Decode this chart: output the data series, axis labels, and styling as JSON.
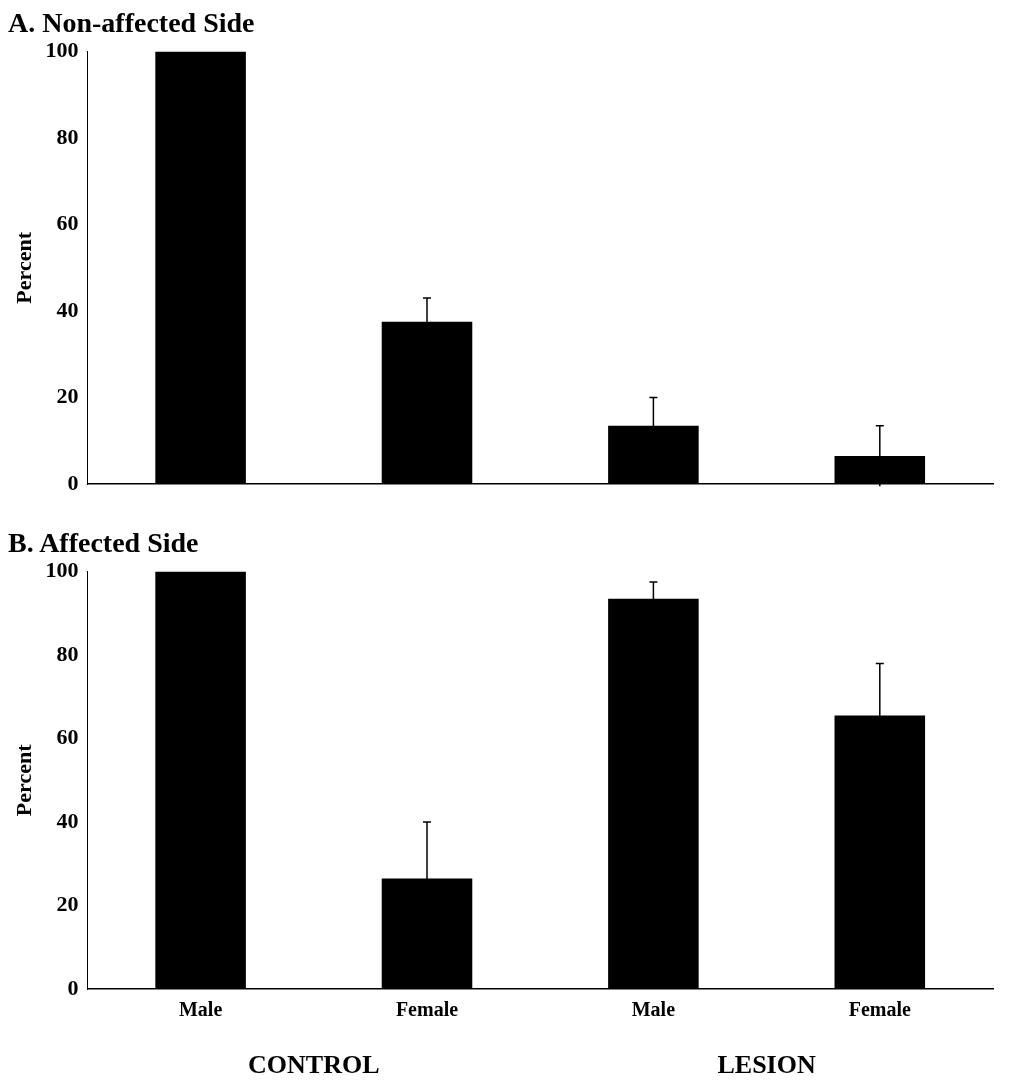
{
  "chart_data": [
    {
      "type": "bar",
      "title": "A. Non-affected Side",
      "ylabel": "Percent",
      "categories": [
        null,
        null,
        null,
        null
      ],
      "values": [
        100,
        37.5,
        13.5,
        6.5
      ],
      "errors": [
        null,
        5.5,
        6.5,
        7
      ],
      "color": "#000000",
      "ylim": [
        0,
        100
      ],
      "yticks": [
        0,
        20,
        40,
        60,
        80,
        100
      ],
      "grid": false,
      "legend": false
    },
    {
      "type": "bar",
      "title": "B. Affected Side",
      "ylabel": "Percent",
      "categories": [
        "Male",
        "Female",
        "Male",
        "Female"
      ],
      "values": [
        100,
        26.5,
        93.5,
        65.5
      ],
      "errors": [
        null,
        13.5,
        4,
        12.5
      ],
      "color": "#000000",
      "ylim": [
        0,
        100
      ],
      "yticks": [
        0,
        20,
        40,
        60,
        80,
        100
      ],
      "grid": false,
      "legend": false,
      "annotations": [
        "CONTROL",
        "LESION"
      ]
    }
  ]
}
